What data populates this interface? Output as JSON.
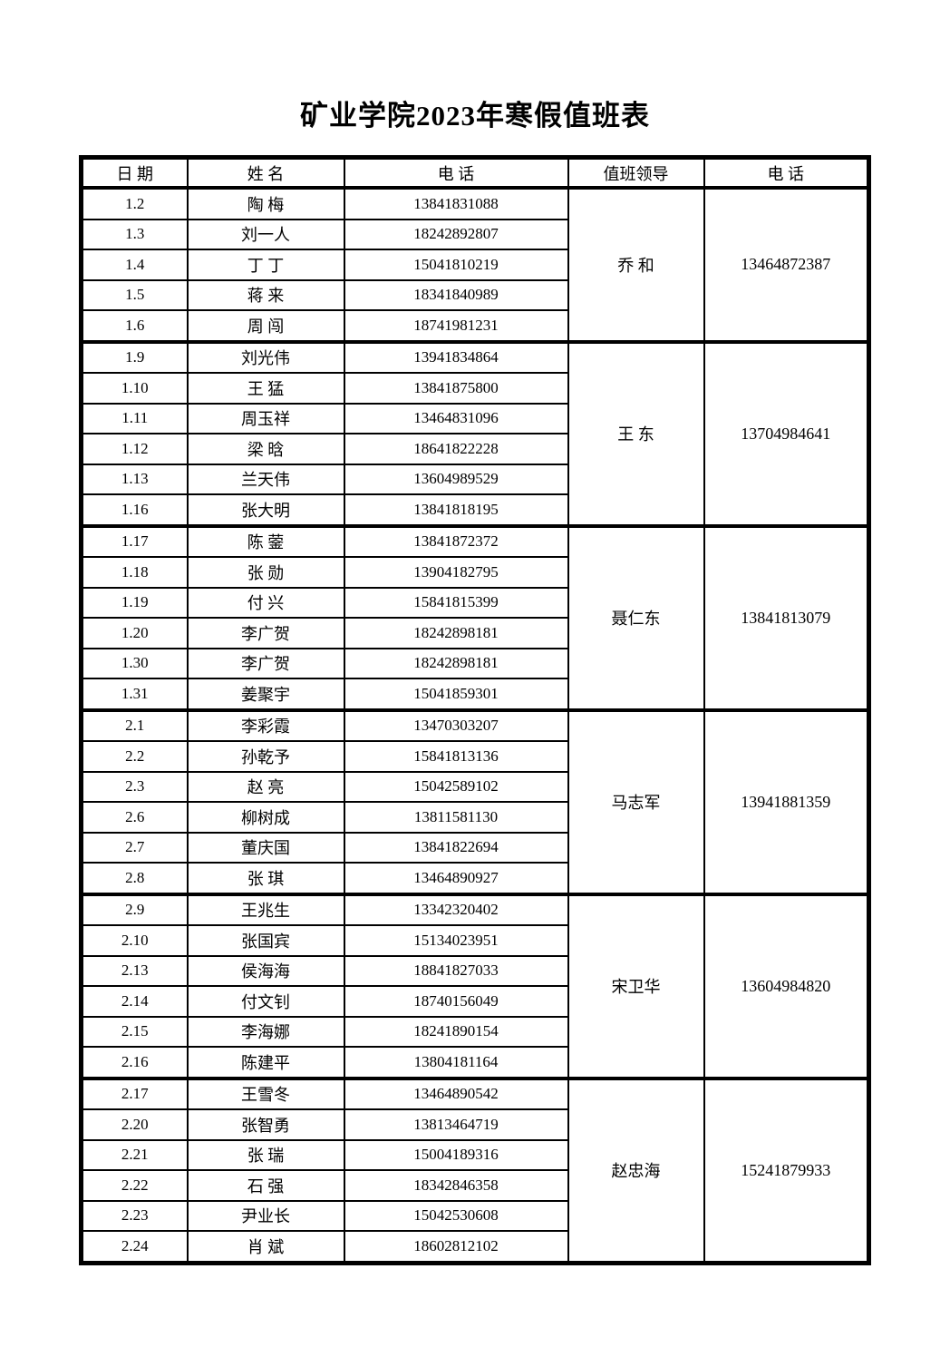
{
  "page": {
    "title": "矿业学院2023年寒假值班表"
  },
  "table": {
    "headers": [
      "日 期",
      "姓  名",
      "电  话",
      "值班领导",
      "电  话"
    ],
    "groups": [
      {
        "leader": "乔  和",
        "leader_phone": "13464872387",
        "rows": [
          {
            "date": "1.2",
            "name": "陶  梅",
            "phone": "13841831088"
          },
          {
            "date": "1.3",
            "name": "刘一人",
            "phone": "18242892807"
          },
          {
            "date": "1.4",
            "name": "丁  丁",
            "phone": "15041810219"
          },
          {
            "date": "1.5",
            "name": "蒋  来",
            "phone": "18341840989"
          },
          {
            "date": "1.6",
            "name": "周  闯",
            "phone": "18741981231"
          }
        ]
      },
      {
        "leader": "王  东",
        "leader_phone": "13704984641",
        "rows": [
          {
            "date": "1.9",
            "name": "刘光伟",
            "phone": "13941834864"
          },
          {
            "date": "1.10",
            "name": "王  猛",
            "phone": "13841875800"
          },
          {
            "date": "1.11",
            "name": "周玉祥",
            "phone": "13464831096"
          },
          {
            "date": "1.12",
            "name": "梁  晗",
            "phone": "18641822228"
          },
          {
            "date": "1.13",
            "name": "兰天伟",
            "phone": "13604989529"
          },
          {
            "date": "1.16",
            "name": "张大明",
            "phone": "13841818195"
          }
        ]
      },
      {
        "leader": "聂仁东",
        "leader_phone": "13841813079",
        "rows": [
          {
            "date": "1.17",
            "name": "陈  蓥",
            "phone": "13841872372"
          },
          {
            "date": "1.18",
            "name": "张  勋",
            "phone": "13904182795"
          },
          {
            "date": "1.19",
            "name": "付  兴",
            "phone": "15841815399"
          },
          {
            "date": "1.20",
            "name": "李广贺",
            "phone": "18242898181"
          },
          {
            "date": "1.30",
            "name": "李广贺",
            "phone": "18242898181"
          },
          {
            "date": "1.31",
            "name": "姜聚宇",
            "phone": "15041859301"
          }
        ]
      },
      {
        "leader": "马志军",
        "leader_phone": "13941881359",
        "rows": [
          {
            "date": "2.1",
            "name": "李彩霞",
            "phone": "13470303207"
          },
          {
            "date": "2.2",
            "name": "孙乾予",
            "phone": "15841813136"
          },
          {
            "date": "2.3",
            "name": "赵  亮",
            "phone": "15042589102"
          },
          {
            "date": "2.6",
            "name": "柳树成",
            "phone": "13811581130"
          },
          {
            "date": "2.7",
            "name": "董庆国",
            "phone": "13841822694"
          },
          {
            "date": "2.8",
            "name": "张  琪",
            "phone": "13464890927"
          }
        ]
      },
      {
        "leader": "宋卫华",
        "leader_phone": "13604984820",
        "rows": [
          {
            "date": "2.9",
            "name": "王兆生",
            "phone": "13342320402"
          },
          {
            "date": "2.10",
            "name": "张国宾",
            "phone": "15134023951"
          },
          {
            "date": "2.13",
            "name": "侯海海",
            "phone": "18841827033"
          },
          {
            "date": "2.14",
            "name": "付文钊",
            "phone": "18740156049"
          },
          {
            "date": "2.15",
            "name": "李海娜",
            "phone": "18241890154"
          },
          {
            "date": "2.16",
            "name": "陈建平",
            "phone": "13804181164"
          }
        ]
      },
      {
        "leader": "赵忠海",
        "leader_phone": "15241879933",
        "rows": [
          {
            "date": "2.17",
            "name": "王雪冬",
            "phone": "13464890542"
          },
          {
            "date": "2.20",
            "name": "张智勇",
            "phone": "13813464719"
          },
          {
            "date": "2.21",
            "name": "张  瑞",
            "phone": "15004189316"
          },
          {
            "date": "2.22",
            "name": "石  强",
            "phone": "18342846358"
          },
          {
            "date": "2.23",
            "name": "尹业长",
            "phone": "15042530608"
          },
          {
            "date": "2.24",
            "name": "肖  斌",
            "phone": "18602812102"
          }
        ]
      }
    ]
  }
}
